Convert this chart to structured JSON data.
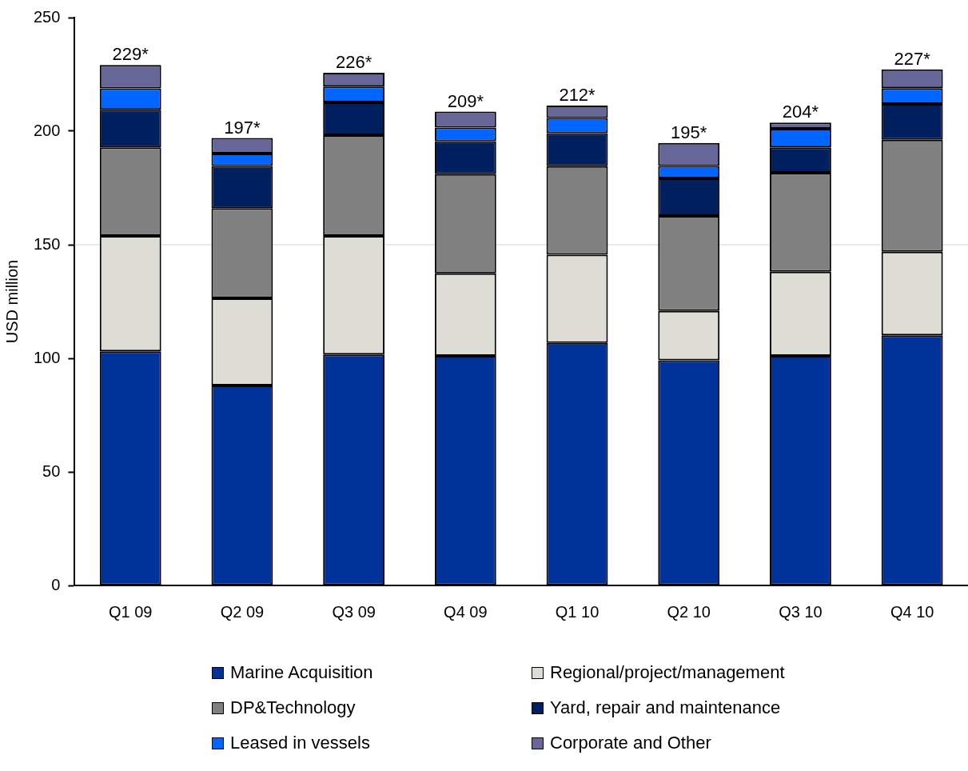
{
  "chart_data": {
    "type": "bar",
    "stacked": true,
    "ylabel": "USD million",
    "categories": [
      "Q1 09",
      "Q2 09",
      "Q3 09",
      "Q4 09",
      "Q1 10",
      "Q2 10",
      "Q3 10",
      "Q4 10"
    ],
    "series": [
      {
        "name": "Marine Acquisition",
        "color": "#003399",
        "values": [
          103.1,
          88.0,
          101.7,
          101.1,
          106.8,
          99.1,
          101.1,
          110.1
        ]
      },
      {
        "name": "Regional/project/management",
        "color": "#dddcd5",
        "values": [
          50.8,
          38.4,
          52.2,
          36.3,
          38.8,
          21.8,
          37.0,
          36.8
        ]
      },
      {
        "name": "DP&Technology",
        "color": "#808080",
        "values": [
          39.0,
          39.7,
          44.3,
          43.7,
          39.0,
          41.8,
          43.6,
          49.3
        ]
      },
      {
        "name": "Yard, repair and maintenance",
        "color": "#001f5f",
        "values": [
          16.5,
          18.6,
          14.5,
          14.5,
          14.5,
          16.5,
          11.2,
          15.8
        ]
      },
      {
        "name": "Leased in vessels",
        "color": "#0066ff",
        "values": [
          9.4,
          5.4,
          6.9,
          6.0,
          6.7,
          5.5,
          8.2,
          6.9
        ]
      },
      {
        "name": "Corporate and Other",
        "color": "#666699",
        "values": [
          10.3,
          6.9,
          6.1,
          7.0,
          5.5,
          10.1,
          2.7,
          8.3
        ]
      }
    ],
    "totals": [
      "229*",
      "197*",
      "226*",
      "209*",
      "212*",
      "195*",
      "204*",
      "227*"
    ],
    "ylim": [
      0,
      250
    ],
    "yticks": [
      0,
      50,
      100,
      150,
      200,
      250
    ],
    "ref_lines": [
      {
        "axis": "y",
        "value": 150,
        "color": "#d4d4c8"
      }
    ],
    "grid": false,
    "legend": "bottom"
  }
}
